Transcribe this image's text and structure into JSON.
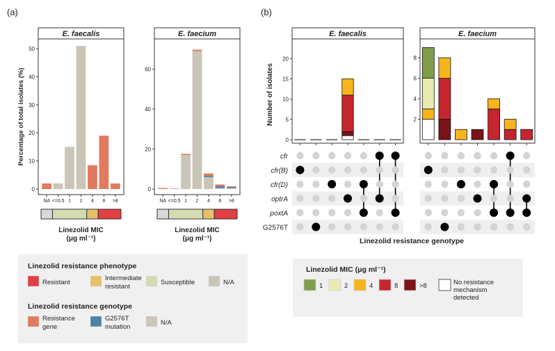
{
  "panel_labels": {
    "a": "(a)",
    "b": "(b)"
  },
  "colors": {
    "resistant": "#e23f45",
    "intermediate": "#e8c06a",
    "susceptible": "#d3dcb0",
    "na": "#d9d9d9",
    "beige": "#cbc5b8",
    "resistance_gene": "#e07b5f",
    "g2576t": "#4d82a8",
    "mic_1": "#7f9e4a",
    "mic_2": "#e9ecb2",
    "mic_4": "#f6b51d",
    "mic_8": "#c5262e",
    "mic_gt8": "#7a1418",
    "dot_active": "#000000",
    "dot_inactive": "#d4d4d4",
    "stripe": "#efefef"
  },
  "chart_data": [
    {
      "id": "a-faecalis",
      "type": "bar",
      "title": "E. faecalis",
      "xlabel": "Linezolid MIC",
      "xlabel_units": "(μg ml⁻¹)",
      "ylabel": "Percentage of total isolates (%)",
      "ylim": [
        0,
        52
      ],
      "yticks": [
        0,
        10,
        20,
        30,
        40,
        50
      ],
      "categories": [
        "NA",
        "<=0.5",
        "1",
        "2",
        "4",
        "8",
        ">8"
      ],
      "series": [
        {
          "name": "N/A",
          "color_key": "beige",
          "values": [
            0,
            2,
            15,
            51,
            0,
            0,
            0
          ]
        },
        {
          "name": "Resistance gene",
          "color_key": "resistance_gene",
          "values": [
            2,
            0,
            0,
            0,
            8.5,
            19,
            2
          ]
        }
      ],
      "phenotype_strip": [
        "na",
        "susceptible",
        "susceptible",
        "susceptible",
        "intermediate",
        "resistant",
        "resistant"
      ]
    },
    {
      "id": "a-faecium",
      "type": "bar",
      "title": "E. faecium",
      "xlabel": "Linezolid MIC",
      "xlabel_units": "(μg ml⁻¹)",
      "ylim": [
        0,
        73
      ],
      "yticks": [
        0,
        20,
        40,
        60
      ],
      "categories": [
        "NA",
        "<=0.5",
        "1",
        "2",
        "4",
        "8",
        ">8"
      ],
      "series": [
        {
          "name": "N/A",
          "color_key": "beige",
          "values": [
            0,
            0.5,
            17,
            69,
            6,
            0.5,
            0.5
          ]
        },
        {
          "name": "G2576T mutation",
          "color_key": "g2576t",
          "values": [
            0,
            0,
            0,
            0,
            0.6,
            1,
            0.6
          ]
        },
        {
          "name": "Resistance gene",
          "color_key": "resistance_gene",
          "values": [
            0.5,
            0,
            0.6,
            0.7,
            1.2,
            0.8,
            0.3
          ]
        }
      ],
      "phenotype_strip": [
        "na",
        "susceptible",
        "susceptible",
        "susceptible",
        "intermediate",
        "resistant",
        "resistant"
      ]
    },
    {
      "id": "b-faecalis",
      "type": "bar",
      "title": "E. faecalis",
      "ylabel": "Number of isolates",
      "ylim": [
        0,
        24
      ],
      "yticks": [
        0,
        5,
        10,
        15,
        20
      ],
      "columns": 7,
      "stacks": [
        [],
        [],
        [],
        [
          {
            "key": "none",
            "value": 1
          },
          {
            "key": "mic_gt8",
            "value": 1
          },
          {
            "key": "mic_8",
            "value": 9
          },
          {
            "key": "mic_4",
            "value": 4
          }
        ],
        [],
        [],
        []
      ],
      "empty_marker": "line"
    },
    {
      "id": "b-faecium",
      "type": "bar",
      "title": "E. faecium",
      "ylim": [
        0,
        9.5
      ],
      "yticks": [
        2,
        4,
        6,
        8
      ],
      "columns": 7,
      "stacks": [
        [
          {
            "key": "none",
            "value": 2
          },
          {
            "key": "mic_4",
            "value": 1
          },
          {
            "key": "mic_2",
            "value": 3
          },
          {
            "key": "mic_1",
            "value": 3
          }
        ],
        [
          {
            "key": "mic_gt8",
            "value": 2
          },
          {
            "key": "mic_8",
            "value": 4
          },
          {
            "key": "mic_4",
            "value": 2
          }
        ],
        [
          {
            "key": "mic_4",
            "value": 1
          }
        ],
        [
          {
            "key": "mic_gt8",
            "value": 1
          }
        ],
        [
          {
            "key": "mic_8",
            "value": 3
          },
          {
            "key": "mic_4",
            "value": 1
          }
        ],
        [
          {
            "key": "mic_8",
            "value": 1
          },
          {
            "key": "mic_4",
            "value": 1
          }
        ],
        [
          {
            "key": "mic_8",
            "value": 1
          }
        ]
      ]
    }
  ],
  "upset": {
    "xlabel": "Linezolid resistance genotype",
    "rows": [
      {
        "label": "cfr",
        "italic": true
      },
      {
        "label": "cfr(B)",
        "italic": true
      },
      {
        "label": "cfr(D)",
        "italic": true
      },
      {
        "label": "optrA",
        "italic": true
      },
      {
        "label": "poxtA",
        "italic": true
      },
      {
        "label": "G2576T",
        "italic": false
      }
    ],
    "faecalis_sets": [
      [
        1
      ],
      [
        5
      ],
      [
        2
      ],
      [
        3
      ],
      [
        2,
        4
      ],
      [
        0,
        3
      ],
      [
        0,
        4
      ]
    ],
    "faecium_sets": [
      [
        1
      ],
      [
        5
      ],
      [
        2
      ],
      [
        3
      ],
      [
        2,
        4
      ],
      [
        0,
        4
      ],
      [
        3,
        4
      ]
    ]
  },
  "legend_phenotype": {
    "title": "Linezolid resistance phenotype",
    "items": [
      {
        "label": "Resistant",
        "color_key": "resistant"
      },
      {
        "label": "Intermediate resistant",
        "color_key": "intermediate"
      },
      {
        "label": "Susceptible",
        "color_key": "susceptible"
      },
      {
        "label": "N/A",
        "color_key": "beige"
      }
    ]
  },
  "legend_genotype": {
    "title": "Linezolid resistance genotype",
    "items": [
      {
        "label": "Resistance gene",
        "color_key": "resistance_gene"
      },
      {
        "label": "G2576T mutation",
        "color_key": "g2576t"
      },
      {
        "label": "N/A",
        "color_key": "beige"
      }
    ]
  },
  "legend_mic": {
    "title": "Linezolid MIC (μg ml⁻¹)",
    "items": [
      {
        "label": "1",
        "color_key": "mic_1"
      },
      {
        "label": "2",
        "color_key": "mic_2"
      },
      {
        "label": "4",
        "color_key": "mic_4"
      },
      {
        "label": "8",
        "color_key": "mic_8"
      },
      {
        "label": ">8",
        "color_key": "mic_gt8"
      },
      {
        "label": "No resistance mechanism detected",
        "color_key": "none"
      }
    ]
  }
}
